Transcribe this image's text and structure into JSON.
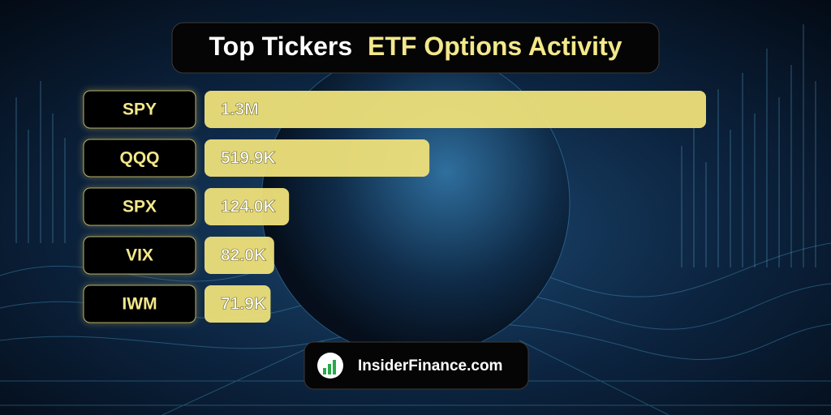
{
  "chart_data": {
    "type": "bar",
    "orientation": "horizontal",
    "title": "Top Tickers",
    "title_highlight": "ETF Options Activity",
    "categories": [
      "SPY",
      "QQQ",
      "SPX",
      "VIX",
      "IWM"
    ],
    "values": [
      1300000,
      519900,
      124000,
      82000,
      71900
    ],
    "value_labels": [
      "1.3M",
      "519.9K",
      "124.0K",
      "82.0K",
      "71.9K"
    ],
    "color": "#eee07a",
    "label_color": "#f3e88a",
    "footer": "InsiderFinance.com"
  }
}
